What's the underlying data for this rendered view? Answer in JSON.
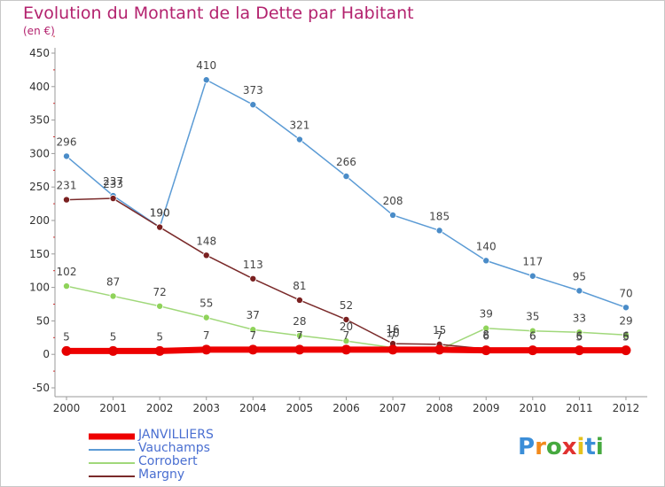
{
  "title": "Evolution du Montant de la Dette par Habitant",
  "subtitle": "(en €)",
  "logo": {
    "text": "Proxiti",
    "letter_colors": [
      "#3b8ed8",
      "#f28a1c",
      "#46a93f",
      "#e0312f",
      "#e5c21d",
      "#3b8ed8",
      "#46a93f"
    ]
  },
  "chart_data": {
    "type": "line",
    "title": "Evolution du Montant de la Dette par Habitant",
    "subtitle": "(en €)",
    "x": [
      "2000",
      "2001",
      "2002",
      "2003",
      "2004",
      "2005",
      "2006",
      "2007",
      "2008",
      "2009",
      "2010",
      "2011",
      "2012"
    ],
    "ylim": [
      -50,
      450
    ],
    "yticks": [
      -50,
      0,
      50,
      100,
      150,
      200,
      250,
      300,
      350,
      400,
      450
    ],
    "grid": false,
    "legend_position": "bottom-left",
    "series": [
      {
        "name": "Vauchamps",
        "color": "#5b9bd5",
        "marker_color": "#4a8cc8",
        "values": [
          296,
          237,
          190,
          410,
          373,
          321,
          266,
          208,
          185,
          140,
          117,
          95,
          70
        ]
      },
      {
        "name": "Corrobert",
        "color": "#a0d87a",
        "marker_color": "#8fd35a",
        "values": [
          102,
          87,
          72,
          55,
          37,
          28,
          20,
          10,
          7,
          39,
          35,
          33,
          29
        ]
      },
      {
        "name": "Margny",
        "color": "#7a2a2a",
        "marker_color": "#7a2020",
        "values": [
          231,
          233,
          190,
          148,
          113,
          81,
          52,
          16,
          15,
          8,
          6,
          5,
          5
        ]
      },
      {
        "name": "JANVILLIERS",
        "color": "#ee0000",
        "marker_color": "#e60000",
        "values": [
          5,
          5,
          5,
          7,
          7,
          7,
          7,
          7,
          7,
          6,
          6,
          6,
          6
        ]
      }
    ]
  }
}
